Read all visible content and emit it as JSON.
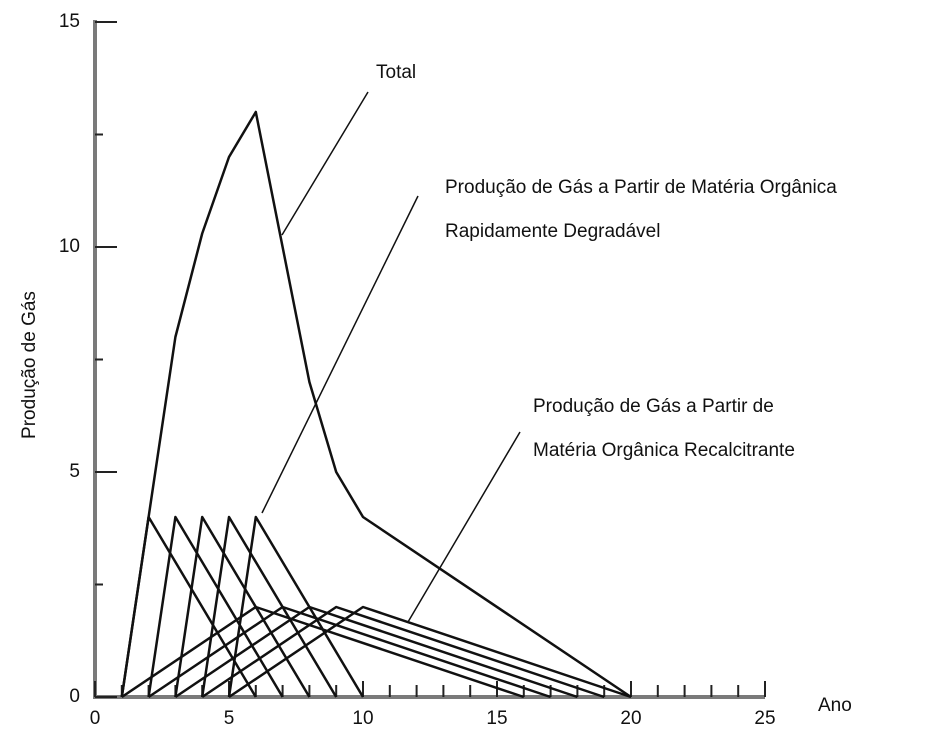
{
  "chart_data": {
    "type": "line",
    "x_label": "Ano",
    "y_label": "Produção de Gás",
    "annotations": [
      "Total",
      "Produção de Gás a Partir de Matéria Orgânica",
      "Rapidamente Degradável",
      "Produção de Gás a Partir de",
      "Matéria Orgânica Recalcitrante"
    ],
    "xlim": [
      0,
      25
    ],
    "ylim": [
      0,
      15
    ],
    "xticks": [
      0,
      5,
      10,
      15,
      20,
      25
    ],
    "yticks": [
      0,
      5,
      10,
      15
    ],
    "series": [
      {
        "color": "#111111",
        "x": [
          1,
          2,
          3,
          4,
          5,
          6,
          7,
          8,
          9,
          10,
          20
        ],
        "values": [
          0,
          4,
          8,
          10.3,
          12,
          13,
          10,
          7,
          5,
          4,
          0
        ]
      },
      {
        "color": "#111111",
        "x": [
          1,
          2,
          6
        ],
        "values": [
          0,
          4,
          0
        ]
      },
      {
        "color": "#111111",
        "x": [
          2,
          3,
          7
        ],
        "values": [
          0,
          4,
          0
        ]
      },
      {
        "color": "#111111",
        "x": [
          3,
          4,
          8
        ],
        "values": [
          0,
          4,
          0
        ]
      },
      {
        "color": "#111111",
        "x": [
          4,
          5,
          9
        ],
        "values": [
          0,
          4,
          0
        ]
      },
      {
        "color": "#111111",
        "x": [
          5,
          6,
          10
        ],
        "values": [
          0,
          4,
          0
        ]
      },
      {
        "color": "#111111",
        "x": [
          1,
          6,
          16
        ],
        "values": [
          0,
          2,
          0
        ]
      },
      {
        "color": "#111111",
        "x": [
          2,
          7,
          17
        ],
        "values": [
          0,
          2,
          0
        ]
      },
      {
        "color": "#111111",
        "x": [
          3,
          8,
          18
        ],
        "values": [
          0,
          2,
          0
        ]
      },
      {
        "color": "#111111",
        "x": [
          4,
          9,
          19
        ],
        "values": [
          0,
          2,
          0
        ]
      },
      {
        "color": "#111111",
        "x": [
          5,
          10,
          20
        ],
        "values": [
          0,
          2,
          0
        ]
      }
    ]
  }
}
